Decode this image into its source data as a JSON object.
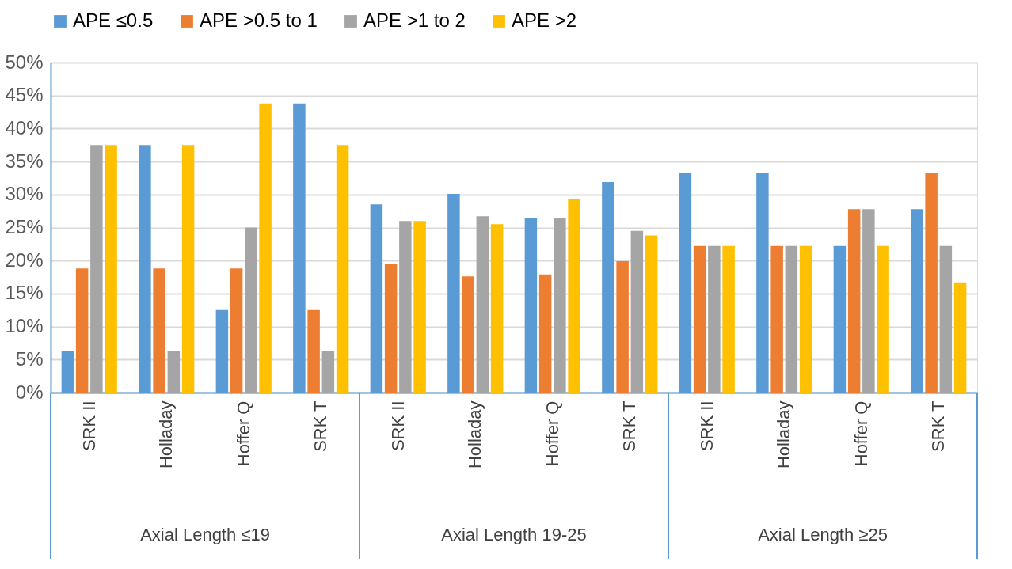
{
  "chart_data": {
    "type": "bar",
    "categories": [
      "SRK II",
      "Holladay",
      "Hoffer Q",
      "SRK T",
      "SRK II",
      "Holladay",
      "Hoffer Q",
      "SRK T",
      "SRK II",
      "Holladay",
      "Hoffer Q",
      "SRK T"
    ],
    "series": [
      {
        "name": "APE ≤0.5",
        "color": "#5b9bd5",
        "values": [
          6.3,
          37.5,
          12.5,
          43.8,
          28.5,
          30.1,
          26.5,
          31.9,
          33.3,
          33.3,
          22.2,
          27.8
        ]
      },
      {
        "name": "APE >0.5 to 1",
        "color": "#ed7d31",
        "values": [
          18.8,
          18.8,
          18.8,
          12.5,
          19.5,
          17.6,
          17.9,
          19.9,
          22.2,
          22.2,
          27.8,
          33.3
        ]
      },
      {
        "name": "APE >1 to 2",
        "color": "#a5a5a5",
        "values": [
          37.5,
          6.3,
          25,
          6.3,
          26.0,
          26.7,
          26.5,
          24.5,
          22.2,
          22.2,
          27.8,
          22.2
        ]
      },
      {
        "name": "APE >2",
        "color": "#ffc000",
        "values": [
          37.5,
          37.5,
          43.8,
          37.5,
          26.0,
          25.5,
          29.3,
          23.8,
          22.2,
          22.2,
          22.2,
          16.7
        ]
      }
    ],
    "annotations": [
      "Axial Length ≤19",
      "Axial Length 19-25",
      "Axial Length ≥25"
    ],
    "ylim": [
      0,
      50
    ],
    "yticks": [
      {
        "value": 0,
        "label": "0%"
      },
      {
        "value": 5,
        "label": "5%"
      },
      {
        "value": 10,
        "label": "10%"
      },
      {
        "value": 15,
        "label": "15%"
      },
      {
        "value": 20,
        "label": "20%"
      },
      {
        "value": 25,
        "label": "25%"
      },
      {
        "value": 30,
        "label": "30%"
      },
      {
        "value": 35,
        "label": "35%"
      },
      {
        "value": 40,
        "label": "40%"
      },
      {
        "value": 45,
        "label": "45%"
      },
      {
        "value": 50,
        "label": "50%"
      }
    ],
    "grid": "y",
    "legend": "top"
  }
}
